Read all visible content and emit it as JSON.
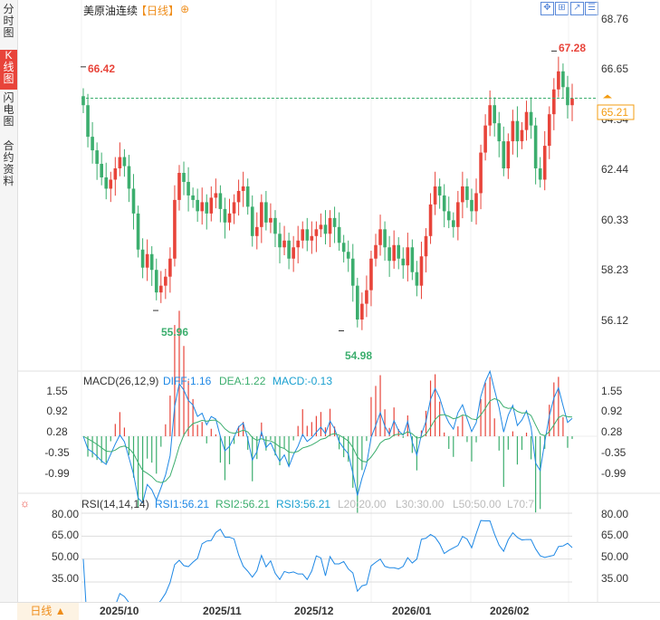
{
  "sidebar": {
    "tabs": [
      {
        "label": "分时图",
        "active": false
      },
      {
        "label": "K线图",
        "active": true
      },
      {
        "label": "闪电图",
        "active": false
      },
      {
        "label": "合约资料",
        "active": false
      }
    ]
  },
  "header": {
    "symbol": "美原油连续",
    "period_tag": "【日线】",
    "add_icon": "plus-circle-icon",
    "tools": [
      "expand-icon",
      "crosshair-icon",
      "draw-icon",
      "settings-icon"
    ]
  },
  "colors": {
    "up": "#e8443a",
    "down": "#3cae6e",
    "diff": "#1e88e5",
    "dea": "#3cae6e",
    "macd": "#1aa0d0",
    "last": "#f39c12"
  },
  "price_axis": {
    "ticks": [
      "68.76",
      "66.65",
      "64.54",
      "62.44",
      "60.33",
      "58.23",
      "56.12"
    ],
    "last_price": "65.21"
  },
  "annotations": {
    "high": "67.28",
    "low1": "55.96",
    "low2": "54.98",
    "first": "66.42"
  },
  "macd": {
    "title": "MACD(26,12,9)",
    "diff": "DIFF:1.16",
    "dea": "DEA:1.22",
    "macd": "MACD:-0.13",
    "ticks": [
      "1.55",
      "0.92",
      "0.28",
      "-0.35",
      "-0.99"
    ]
  },
  "rsi": {
    "title": "RSI(14,14,14)",
    "rsi1": "RSI1:56.21",
    "rsi2": "RSI2:56.21",
    "rsi3": "RSI3:56.21",
    "l20": "L20:20.00",
    "l30": "L30:30.00",
    "l50": "L50:50.00",
    "l70": "L70:7",
    "ticks": [
      "80.00",
      "65.00",
      "50.00",
      "35.00"
    ]
  },
  "x_axis": [
    "2025/10",
    "2025/11",
    "2025/12",
    "2026/01",
    "2026/02"
  ],
  "period_button": "日线 ▲",
  "chart_data": {
    "type": "candlestick",
    "title": "美原油连续",
    "ylim": [
      55,
      69
    ],
    "closes": [
      64.9,
      63.5,
      62.9,
      62.3,
      61.7,
      61.2,
      61.6,
      62.1,
      62.6,
      62.2,
      61.2,
      60.1,
      58.5,
      57.7,
      58.3,
      57.6,
      56.6,
      56.9,
      57.3,
      58.1,
      60.7,
      61.9,
      61.5,
      60.9,
      60.7,
      60.2,
      60.6,
      60.1,
      60.8,
      61.0,
      60.3,
      59.7,
      60.1,
      60.6,
      61.1,
      61.3,
      60.4,
      59.1,
      59.5,
      60.6,
      59.7,
      59.9,
      59.2,
      58.6,
      58.9,
      58.1,
      58.6,
      58.9,
      59.4,
      58.9,
      59.1,
      59.4,
      59.6,
      59.2,
      59.9,
      59.5,
      58.8,
      58.4,
      58.1,
      56.9,
      55.4,
      56.1,
      56.7,
      58.1,
      58.7,
      59.4,
      58.6,
      58.0,
      58.7,
      58.1,
      57.8,
      58.6,
      57.5,
      56.9,
      58.2,
      59.1,
      60.5,
      61.3,
      60.9,
      60.2,
      59.8,
      59.5,
      60.6,
      61.3,
      60.7,
      60.2,
      61.0,
      62.8,
      64.0,
      64.9,
      64.1,
      63.3,
      62.1,
      63.3,
      64.2,
      63.3,
      63.8,
      64.6,
      64.0,
      62.1,
      61.6,
      63.1,
      64.5,
      65.6,
      66.4,
      65.7,
      64.9,
      65.2
    ]
  }
}
